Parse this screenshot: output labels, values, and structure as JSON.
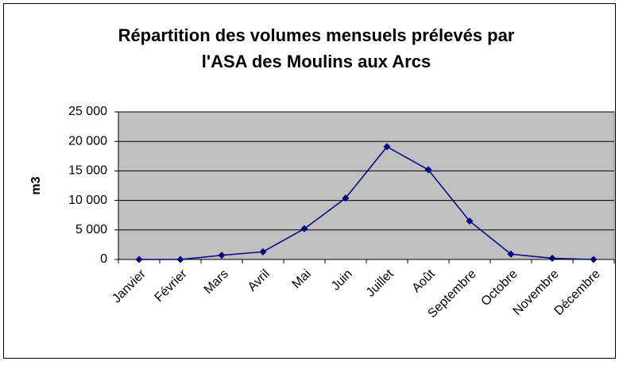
{
  "chart_data": {
    "type": "line",
    "title": [
      "Répartition des volumes mensuels prélevés par",
      "l'ASA des Moulins aux Arcs"
    ],
    "y_label": "m3",
    "categories": [
      "Janvier",
      "Février",
      "Mars",
      "Avril",
      "Mai",
      "Juin",
      "Juillet",
      "Août",
      "Septembre",
      "Octobre",
      "Novembre",
      "Décembre"
    ],
    "values": [
      0,
      0,
      700,
      1300,
      5200,
      10400,
      19100,
      15200,
      6500,
      900,
      200,
      0
    ],
    "color": "#000080",
    "ylim": [
      0,
      25000
    ],
    "yticks": [
      0,
      {
        "value": 5000,
        "label": "5 000"
      },
      {
        "value": 10000,
        "label": "10 000"
      },
      {
        "value": 15000,
        "label": "15 000"
      },
      {
        "value": 20000,
        "label": "20 000"
      },
      {
        "value": 25000,
        "label": "25 000"
      }
    ],
    "grid": true
  }
}
